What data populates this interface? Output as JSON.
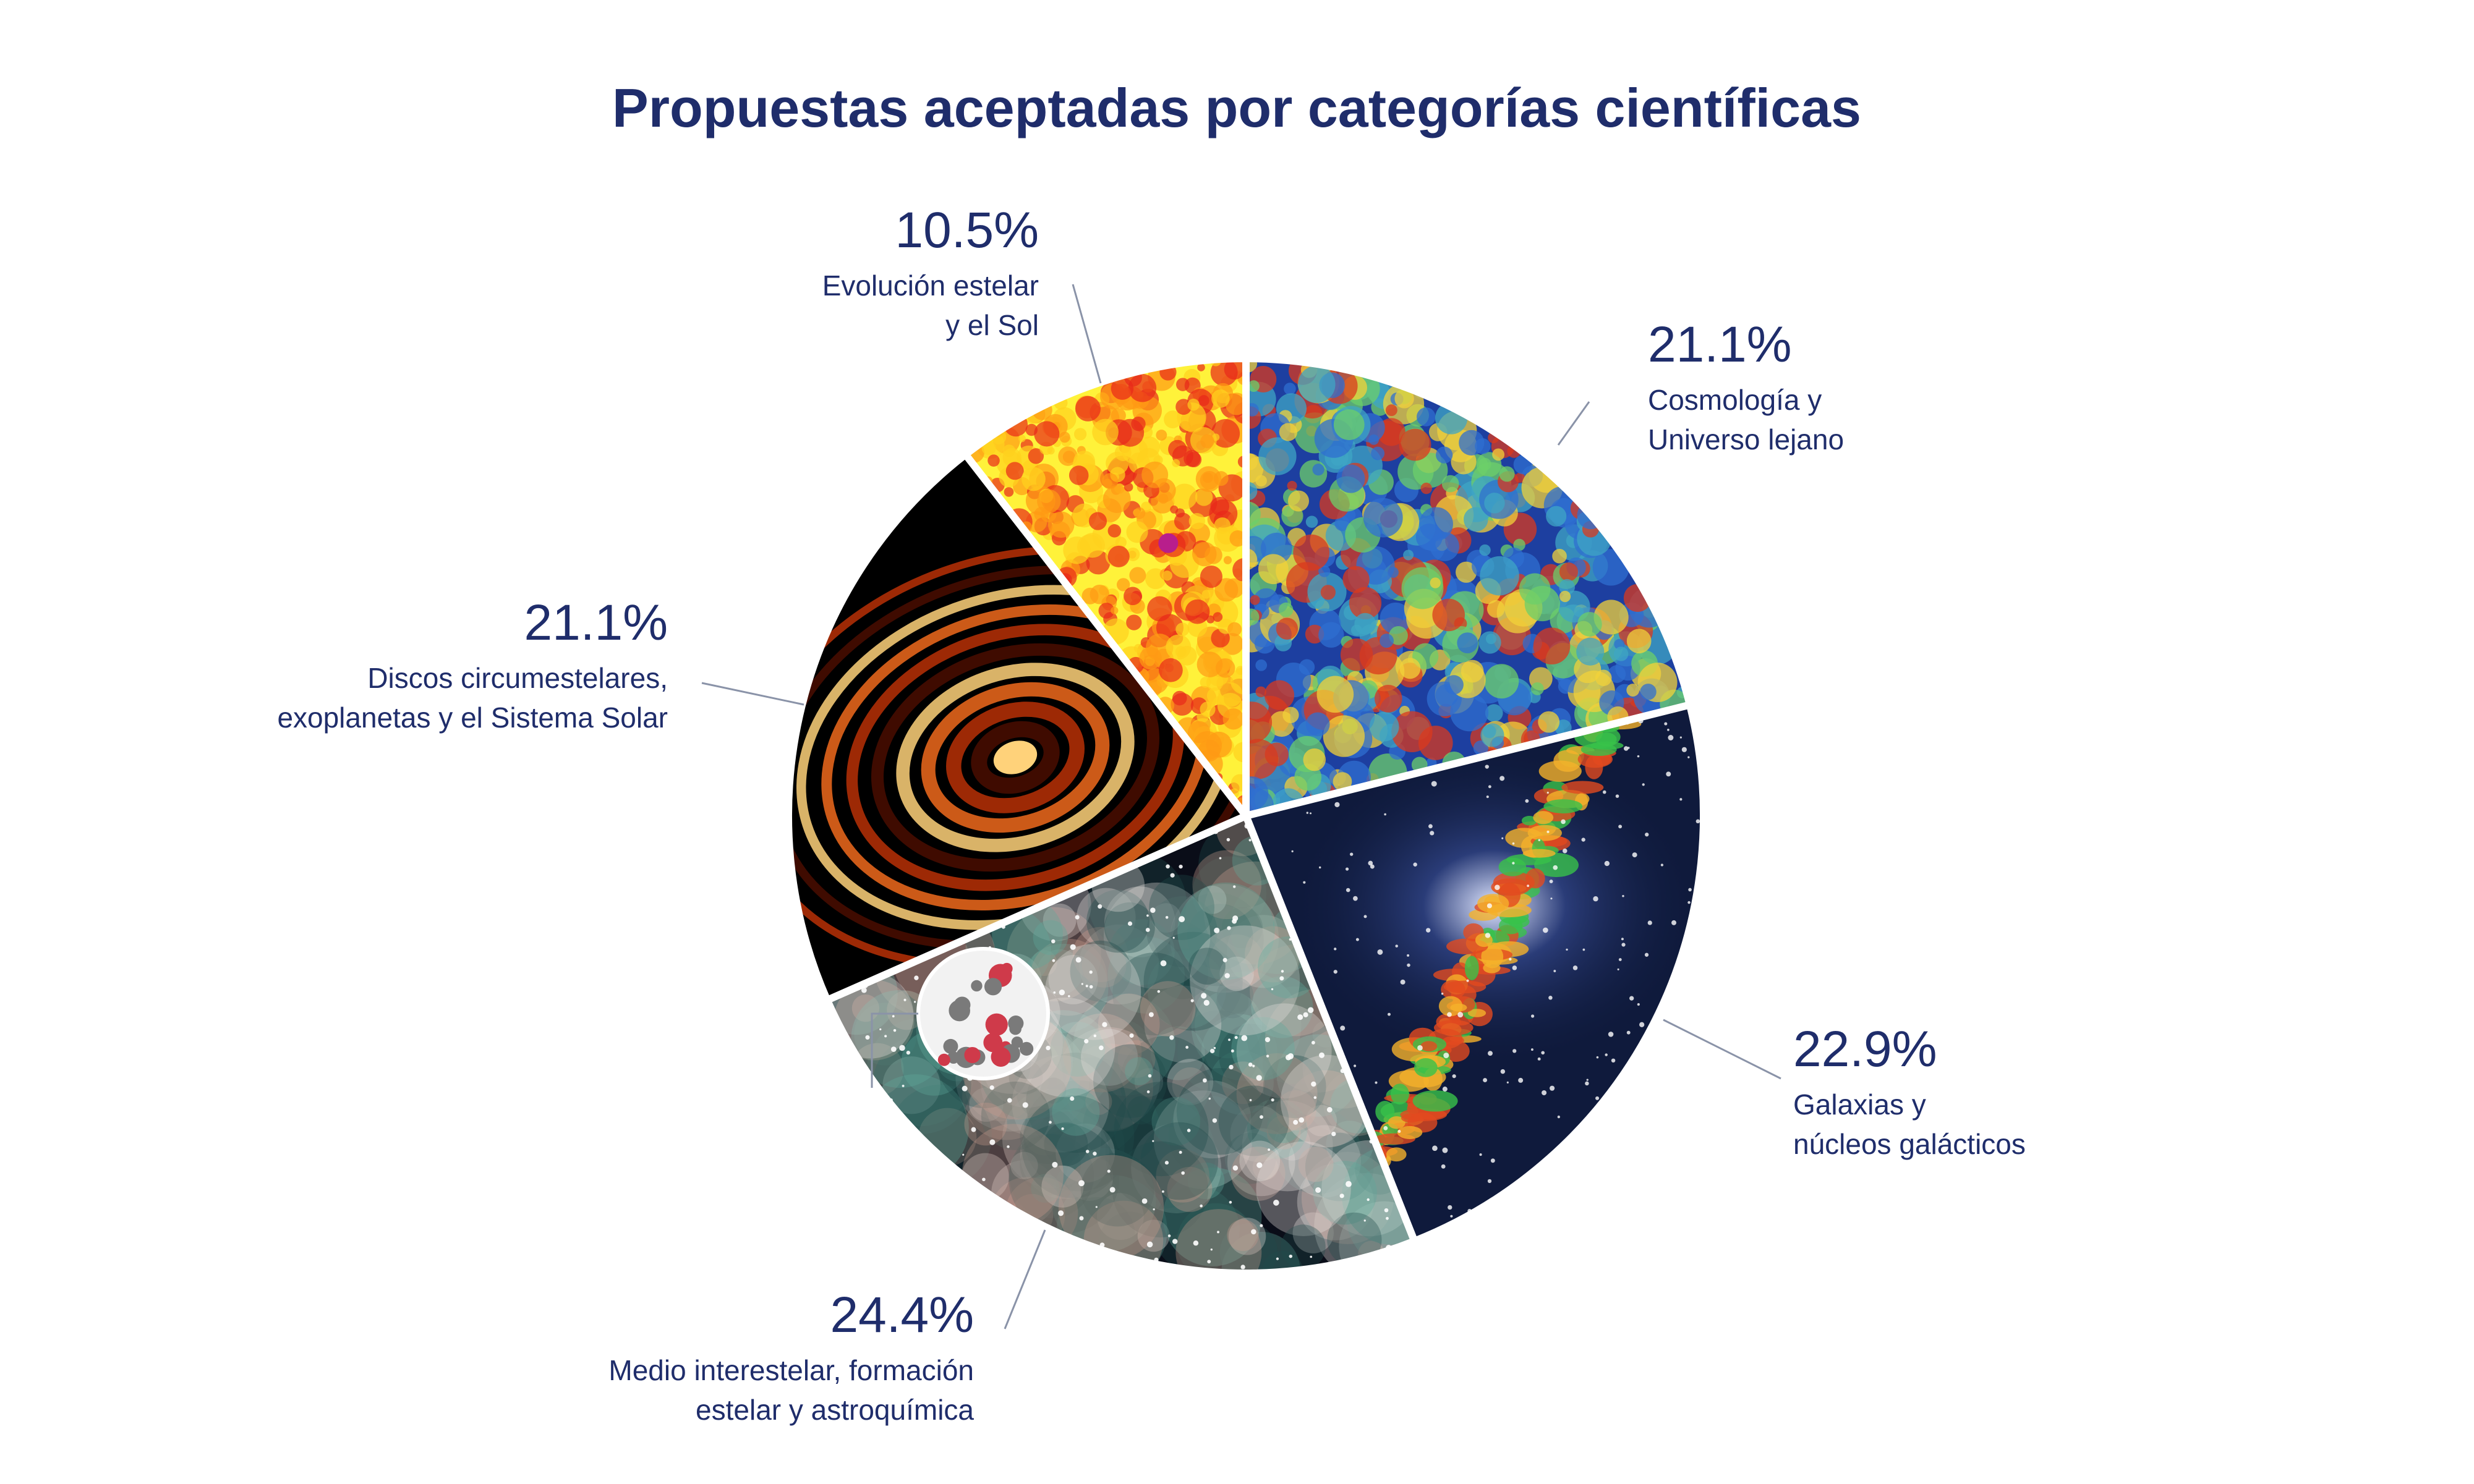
{
  "chart_data": {
    "type": "pie",
    "title": "Propuestas aceptadas por categorías científicas",
    "start_angle_deg": 0,
    "direction": "clockwise",
    "slices": [
      {
        "name": "Cosmología y Universo lejano",
        "label_lines": [
          "Cosmología y",
          "Universo lejano"
        ],
        "value": 21.1,
        "value_label": "21.1%",
        "image_theme": "cosmic-microwave-background-map",
        "colors": [
          "#1d3fa0",
          "#2f6fd0",
          "#3fa6c4",
          "#6ccf6a",
          "#f2d23a",
          "#d93a1e"
        ]
      },
      {
        "name": "Galaxias y núcleos galácticos",
        "label_lines": [
          "Galaxias y",
          "núcleos galácticos"
        ],
        "value": 22.9,
        "value_label": "22.9%",
        "image_theme": "galaxy-with-jets",
        "colors": [
          "#0f1a3c",
          "#2a3c78",
          "#dfe6ff",
          "#38c24a",
          "#f5b12b",
          "#e24a1f"
        ]
      },
      {
        "name": "Medio interestelar, formación estelar y astroquímica",
        "label_lines": [
          "Medio interestelar, formación",
          "estelar y astroquímica"
        ],
        "value": 24.4,
        "value_label": "24.4%",
        "image_theme": "nebula-with-molecule-inset",
        "colors": [
          "#0a0d18",
          "#1f4a4a",
          "#5fa89a",
          "#c99a8c",
          "#e6e0dc",
          "#cf3a4a"
        ]
      },
      {
        "name": "Discos circumestelares, exoplanetas y el Sistema Solar",
        "label_lines": [
          "Discos circumestelares,",
          "exoplanetas y el Sistema Solar"
        ],
        "value": 21.1,
        "value_label": "21.1%",
        "image_theme": "protoplanetary-disk-rings",
        "colors": [
          "#000000",
          "#4a0d00",
          "#b83006",
          "#f06a1c",
          "#ffd27a"
        ]
      },
      {
        "name": "Evolución estelar y el Sol",
        "label_lines": [
          "Evolución estelar",
          "y el Sol"
        ],
        "value": 10.5,
        "value_label": "10.5%",
        "image_theme": "solar-surface-map",
        "colors": [
          "#fff23a",
          "#ffd21e",
          "#ff9a14",
          "#e8281a",
          "#b81e8c"
        ]
      }
    ]
  }
}
